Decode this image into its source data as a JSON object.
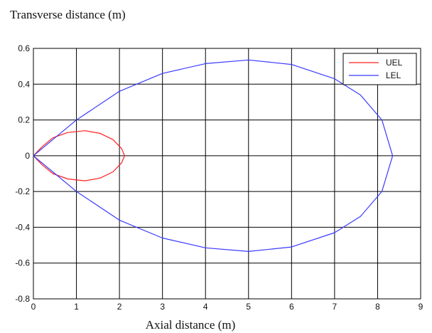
{
  "chart_data": {
    "type": "line",
    "ylabel": "Transverse distance (m)",
    "xlabel": "Axial distance (m)",
    "xlim": [
      0,
      9
    ],
    "ylim": [
      -0.8,
      0.6
    ],
    "xticks": [
      0,
      1,
      2,
      3,
      4,
      5,
      6,
      7,
      8,
      9
    ],
    "yticks": [
      0.6,
      0.4,
      0.2,
      0,
      -0.2,
      -0.4,
      -0.6,
      -0.8
    ],
    "xtick_labels": [
      "0",
      "1",
      "2",
      "3",
      "4",
      "5",
      "6",
      "7",
      "8",
      "9"
    ],
    "ytick_labels": [
      "0.6",
      "0.4",
      "0.2",
      "0",
      "-0.2",
      "-0.4",
      "-0.6",
      "-0.8"
    ],
    "grid": true,
    "legend_position": "top-right",
    "series": [
      {
        "name": "UEL",
        "color": "#ff2020",
        "x": [
          0,
          0.2,
          0.45,
          0.8,
          1.2,
          1.55,
          1.85,
          2.05,
          2.12,
          2.05,
          1.85,
          1.55,
          1.2,
          0.8,
          0.45,
          0.2,
          0
        ],
        "y": [
          0,
          0.05,
          0.1,
          0.13,
          0.14,
          0.125,
          0.09,
          0.04,
          0,
          -0.04,
          -0.09,
          -0.125,
          -0.14,
          -0.13,
          -0.1,
          -0.05,
          0
        ]
      },
      {
        "name": "LEL",
        "color": "#3a3aff",
        "x": [
          0,
          0.5,
          1.0,
          2.0,
          3.0,
          4.0,
          5.0,
          6.0,
          7.0,
          7.6,
          8.1,
          8.35,
          8.1,
          7.6,
          7.0,
          6.0,
          5.0,
          4.0,
          3.0,
          2.0,
          1.0,
          0.5,
          0
        ],
        "y": [
          0,
          0.1,
          0.2,
          0.36,
          0.46,
          0.515,
          0.535,
          0.51,
          0.43,
          0.34,
          0.2,
          0,
          -0.2,
          -0.34,
          -0.43,
          -0.51,
          -0.535,
          -0.515,
          -0.46,
          -0.36,
          -0.2,
          -0.1,
          0
        ]
      }
    ]
  }
}
